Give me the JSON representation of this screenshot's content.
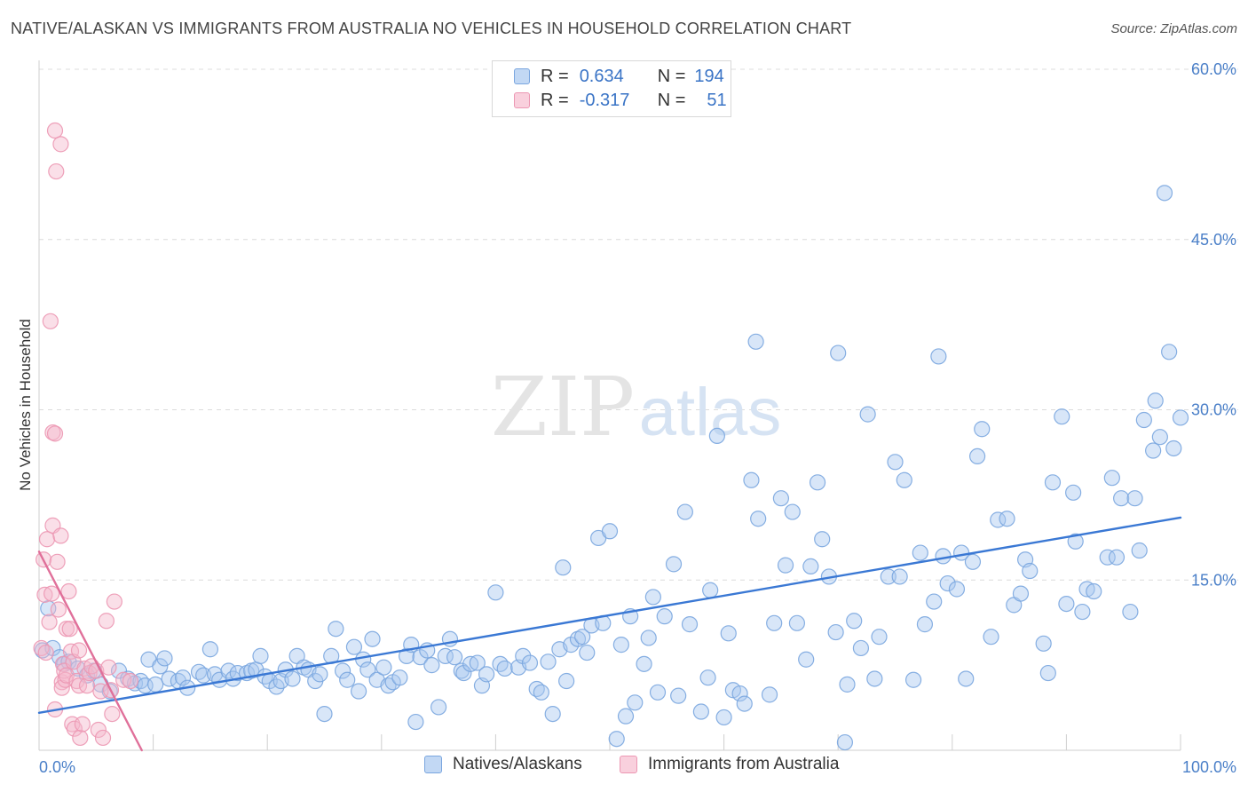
{
  "header": {
    "title": "NATIVE/ALASKAN VS IMMIGRANTS FROM AUSTRALIA NO VEHICLES IN HOUSEHOLD CORRELATION CHART",
    "source": "Source: ZipAtlas.com"
  },
  "watermark": {
    "zip": "ZIP",
    "atlas": "atlas"
  },
  "legend_top": {
    "rows": [
      {
        "r_label": "R =",
        "r_value": "0.634",
        "n_label": "N =",
        "n_value": "194",
        "color": "#a9c8ef"
      },
      {
        "r_label": "R =",
        "r_value": "-0.317",
        "n_label": "N =",
        "n_value": "51",
        "color": "#f5b8cb"
      }
    ]
  },
  "legend_bottom": {
    "items": [
      {
        "label": "Natives/Alaskans",
        "color": "#a9c8ef"
      },
      {
        "label": "Immigrants from Australia",
        "color": "#f5b8cb"
      }
    ]
  },
  "chart_data": {
    "type": "scatter",
    "title": "NATIVE/ALASKAN VS IMMIGRANTS FROM AUSTRALIA NO VEHICLES IN HOUSEHOLD CORRELATION CHART",
    "xlabel": "",
    "ylabel": "No Vehicles in Household",
    "xlim": [
      0,
      100
    ],
    "ylim": [
      0,
      60
    ],
    "x_tick_labels": [
      {
        "value": 0,
        "label": "0.0%"
      },
      {
        "value": 100,
        "label": "100.0%"
      }
    ],
    "y_tick_labels": [
      {
        "value": 15,
        "label": "15.0%"
      },
      {
        "value": 30,
        "label": "30.0%"
      },
      {
        "value": 45,
        "label": "45.0%"
      },
      {
        "value": 60,
        "label": "60.0%"
      }
    ],
    "grid": true,
    "legend_position": "top-center",
    "colors": {
      "natives": "#3a78d4",
      "immigrants": "#e0709a"
    },
    "series": [
      {
        "name": "Natives/Alaskans",
        "points": [
          [
            0.3,
            8.8
          ],
          [
            0.8,
            12.5
          ],
          [
            1.2,
            9.0
          ],
          [
            1.8,
            8.2
          ],
          [
            2.2,
            7.6
          ],
          [
            2.6,
            7.8
          ],
          [
            3.4,
            7.2
          ],
          [
            4.2,
            6.6
          ],
          [
            4.8,
            7.0
          ],
          [
            5.4,
            5.8
          ],
          [
            6.2,
            5.2
          ],
          [
            7.0,
            7.0
          ],
          [
            7.8,
            6.3
          ],
          [
            8.4,
            5.9
          ],
          [
            8.9,
            6.1
          ],
          [
            9.3,
            5.7
          ],
          [
            9.6,
            8.0
          ],
          [
            10.2,
            5.8
          ],
          [
            10.6,
            7.4
          ],
          [
            11.0,
            8.1
          ],
          [
            11.4,
            6.3
          ],
          [
            12.2,
            6.1
          ],
          [
            12.6,
            6.4
          ],
          [
            13.0,
            5.5
          ],
          [
            14.0,
            6.9
          ],
          [
            14.4,
            6.6
          ],
          [
            15.0,
            8.9
          ],
          [
            15.4,
            6.7
          ],
          [
            15.8,
            6.2
          ],
          [
            16.6,
            7.0
          ],
          [
            17.0,
            6.3
          ],
          [
            17.4,
            6.8
          ],
          [
            18.2,
            6.8
          ],
          [
            18.6,
            7.0
          ],
          [
            19.0,
            7.1
          ],
          [
            19.4,
            8.3
          ],
          [
            19.8,
            6.5
          ],
          [
            20.2,
            6.1
          ],
          [
            20.8,
            5.6
          ],
          [
            21.2,
            6.1
          ],
          [
            21.6,
            7.1
          ],
          [
            22.2,
            6.3
          ],
          [
            22.6,
            8.3
          ],
          [
            23.2,
            7.3
          ],
          [
            23.6,
            7.1
          ],
          [
            24.2,
            6.1
          ],
          [
            24.6,
            6.7
          ],
          [
            25.0,
            3.2
          ],
          [
            25.6,
            8.3
          ],
          [
            26.0,
            10.7
          ],
          [
            26.6,
            7.0
          ],
          [
            27.0,
            6.2
          ],
          [
            27.6,
            9.1
          ],
          [
            28.0,
            5.2
          ],
          [
            28.4,
            8.0
          ],
          [
            28.8,
            7.1
          ],
          [
            29.2,
            9.8
          ],
          [
            29.6,
            6.2
          ],
          [
            30.2,
            7.3
          ],
          [
            30.6,
            5.7
          ],
          [
            31.0,
            6.0
          ],
          [
            31.6,
            6.4
          ],
          [
            32.2,
            8.3
          ],
          [
            32.6,
            9.3
          ],
          [
            33.0,
            2.5
          ],
          [
            33.4,
            8.2
          ],
          [
            34.0,
            8.8
          ],
          [
            34.4,
            7.5
          ],
          [
            35.0,
            3.8
          ],
          [
            35.6,
            8.3
          ],
          [
            36.0,
            9.8
          ],
          [
            36.4,
            8.2
          ],
          [
            37.0,
            7.0
          ],
          [
            37.2,
            6.8
          ],
          [
            37.8,
            7.6
          ],
          [
            38.4,
            7.7
          ],
          [
            38.8,
            5.7
          ],
          [
            39.2,
            6.7
          ],
          [
            40.0,
            13.9
          ],
          [
            40.4,
            7.6
          ],
          [
            40.8,
            7.2
          ],
          [
            42.0,
            7.3
          ],
          [
            42.4,
            8.3
          ],
          [
            43.0,
            7.7
          ],
          [
            43.6,
            5.4
          ],
          [
            44.0,
            5.1
          ],
          [
            44.6,
            7.8
          ],
          [
            45.0,
            3.2
          ],
          [
            45.6,
            8.9
          ],
          [
            45.9,
            16.1
          ],
          [
            46.2,
            6.1
          ],
          [
            46.6,
            9.3
          ],
          [
            47.2,
            9.8
          ],
          [
            47.6,
            10.0
          ],
          [
            48.0,
            8.6
          ],
          [
            48.4,
            11.0
          ],
          [
            49.0,
            18.7
          ],
          [
            49.4,
            11.2
          ],
          [
            50.0,
            19.3
          ],
          [
            50.6,
            1.0
          ],
          [
            51.0,
            9.3
          ],
          [
            51.4,
            3.0
          ],
          [
            51.8,
            11.8
          ],
          [
            52.2,
            4.2
          ],
          [
            53.0,
            7.6
          ],
          [
            53.4,
            9.9
          ],
          [
            53.8,
            13.5
          ],
          [
            54.2,
            5.1
          ],
          [
            54.8,
            11.8
          ],
          [
            55.6,
            16.4
          ],
          [
            56.0,
            4.8
          ],
          [
            56.6,
            21.0
          ],
          [
            57.0,
            11.1
          ],
          [
            58.0,
            3.4
          ],
          [
            58.6,
            6.4
          ],
          [
            58.8,
            14.1
          ],
          [
            59.4,
            27.7
          ],
          [
            60.0,
            2.9
          ],
          [
            60.4,
            10.3
          ],
          [
            60.8,
            5.3
          ],
          [
            61.4,
            5.0
          ],
          [
            61.8,
            4.1
          ],
          [
            62.4,
            23.8
          ],
          [
            62.8,
            36.0
          ],
          [
            63.0,
            20.4
          ],
          [
            64.0,
            4.9
          ],
          [
            64.4,
            11.2
          ],
          [
            65.0,
            22.2
          ],
          [
            65.4,
            16.3
          ],
          [
            66.0,
            21.0
          ],
          [
            66.4,
            11.2
          ],
          [
            67.2,
            8.0
          ],
          [
            67.6,
            16.2
          ],
          [
            68.2,
            23.6
          ],
          [
            68.6,
            18.6
          ],
          [
            69.2,
            15.3
          ],
          [
            69.8,
            10.4
          ],
          [
            70.0,
            35.0
          ],
          [
            70.6,
            0.7
          ],
          [
            70.8,
            5.8
          ],
          [
            71.4,
            11.4
          ],
          [
            72.0,
            9.0
          ],
          [
            72.6,
            29.6
          ],
          [
            73.2,
            6.3
          ],
          [
            73.6,
            10.0
          ],
          [
            74.4,
            15.3
          ],
          [
            75.0,
            25.4
          ],
          [
            75.4,
            15.3
          ],
          [
            75.8,
            23.8
          ],
          [
            76.6,
            6.2
          ],
          [
            77.2,
            17.4
          ],
          [
            77.6,
            11.1
          ],
          [
            78.4,
            13.1
          ],
          [
            78.8,
            34.7
          ],
          [
            79.2,
            17.1
          ],
          [
            79.6,
            14.7
          ],
          [
            80.4,
            14.2
          ],
          [
            80.8,
            17.4
          ],
          [
            81.2,
            6.3
          ],
          [
            81.8,
            16.6
          ],
          [
            82.2,
            25.9
          ],
          [
            82.6,
            28.3
          ],
          [
            83.4,
            10.0
          ],
          [
            84.0,
            20.3
          ],
          [
            84.8,
            20.4
          ],
          [
            85.4,
            12.8
          ],
          [
            86.0,
            13.8
          ],
          [
            86.4,
            16.8
          ],
          [
            86.8,
            15.8
          ],
          [
            88.0,
            9.4
          ],
          [
            88.4,
            6.8
          ],
          [
            88.8,
            23.6
          ],
          [
            89.6,
            29.4
          ],
          [
            90.0,
            12.9
          ],
          [
            90.6,
            22.7
          ],
          [
            90.8,
            18.4
          ],
          [
            91.4,
            12.2
          ],
          [
            91.8,
            14.2
          ],
          [
            92.4,
            14.0
          ],
          [
            93.6,
            17.0
          ],
          [
            94.0,
            24.0
          ],
          [
            94.4,
            17.0
          ],
          [
            94.8,
            22.2
          ],
          [
            95.6,
            12.2
          ],
          [
            96.0,
            22.2
          ],
          [
            96.4,
            17.6
          ],
          [
            96.8,
            29.1
          ],
          [
            97.6,
            26.4
          ],
          [
            97.8,
            30.8
          ],
          [
            98.2,
            27.6
          ],
          [
            98.6,
            49.1
          ],
          [
            99.0,
            35.1
          ],
          [
            99.4,
            26.6
          ],
          [
            100.0,
            29.3
          ]
        ]
      },
      {
        "name": "Immigrants from Australia",
        "points": [
          [
            0.2,
            9.0
          ],
          [
            0.4,
            16.8
          ],
          [
            0.5,
            13.7
          ],
          [
            0.6,
            8.6
          ],
          [
            0.7,
            18.6
          ],
          [
            0.9,
            11.3
          ],
          [
            1.0,
            37.8
          ],
          [
            1.1,
            13.8
          ],
          [
            1.2,
            19.8
          ],
          [
            1.2,
            28.0
          ],
          [
            1.4,
            27.9
          ],
          [
            1.4,
            3.6
          ],
          [
            1.4,
            54.6
          ],
          [
            1.5,
            51.0
          ],
          [
            1.6,
            16.6
          ],
          [
            1.7,
            12.4
          ],
          [
            1.9,
            53.4
          ],
          [
            1.9,
            18.9
          ],
          [
            2.0,
            6.0
          ],
          [
            2.0,
            5.5
          ],
          [
            2.1,
            7.6
          ],
          [
            2.2,
            7.0
          ],
          [
            2.3,
            6.2
          ],
          [
            2.4,
            10.7
          ],
          [
            2.4,
            6.6
          ],
          [
            2.6,
            14.0
          ],
          [
            2.7,
            10.7
          ],
          [
            2.8,
            8.7
          ],
          [
            2.9,
            2.3
          ],
          [
            3.0,
            7.8
          ],
          [
            3.1,
            1.9
          ],
          [
            3.3,
            6.1
          ],
          [
            3.5,
            8.8
          ],
          [
            3.5,
            5.7
          ],
          [
            3.6,
            1.1
          ],
          [
            3.8,
            2.3
          ],
          [
            4.0,
            7.2
          ],
          [
            4.2,
            5.7
          ],
          [
            4.4,
            6.8
          ],
          [
            4.6,
            7.4
          ],
          [
            5.0,
            7.0
          ],
          [
            5.2,
            1.8
          ],
          [
            5.4,
            5.2
          ],
          [
            5.6,
            1.1
          ],
          [
            5.9,
            11.4
          ],
          [
            6.1,
            7.3
          ],
          [
            6.3,
            5.3
          ],
          [
            6.4,
            3.2
          ],
          [
            6.6,
            13.1
          ],
          [
            7.4,
            6.2
          ],
          [
            8.0,
            6.1
          ]
        ]
      }
    ],
    "trend_lines": [
      {
        "series": "Natives/Alaskans",
        "from": [
          0,
          3.3
        ],
        "to": [
          100,
          20.5
        ]
      },
      {
        "series": "Immigrants from Australia",
        "from": [
          0,
          17.5
        ],
        "to": [
          9.0,
          0
        ]
      }
    ]
  }
}
